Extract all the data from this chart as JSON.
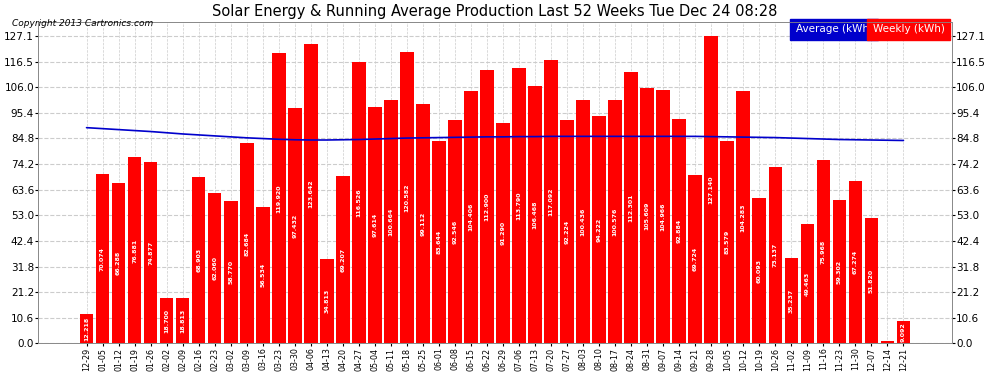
{
  "title": "Solar Energy & Running Average Production Last 52 Weeks Tue Dec 24 08:28",
  "copyright": "Copyright 2013 Cartronics.com",
  "bar_color": "#ff0000",
  "avg_line_color": "#0000cc",
  "background_color": "#ffffff",
  "plot_bg_color": "#ffffff",
  "ytick_values": [
    0.0,
    10.6,
    21.2,
    31.8,
    42.4,
    53.0,
    63.6,
    74.2,
    84.8,
    95.4,
    106.0,
    116.5,
    127.1
  ],
  "ylim_max": 133,
  "legend_avg_label": "Average (kWh)",
  "legend_weekly_label": "Weekly (kWh)",
  "legend_avg_bg": "#0000cc",
  "legend_weekly_bg": "#ff0000",
  "categories": [
    "12-29",
    "01-05",
    "01-12",
    "01-19",
    "01-26",
    "02-02",
    "02-09",
    "02-16",
    "02-23",
    "03-02",
    "03-09",
    "03-16",
    "03-23",
    "03-30",
    "04-06",
    "04-13",
    "04-20",
    "04-27",
    "05-04",
    "05-11",
    "05-18",
    "05-25",
    "06-01",
    "06-08",
    "06-15",
    "06-22",
    "06-29",
    "07-06",
    "07-13",
    "07-20",
    "07-27",
    "08-03",
    "08-10",
    "08-17",
    "08-24",
    "08-31",
    "09-07",
    "09-14",
    "09-21",
    "09-28",
    "10-05",
    "10-12",
    "10-19",
    "10-26",
    "11-02",
    "11-09",
    "11-16",
    "11-23",
    "11-30",
    "12-07",
    "12-14",
    "12-21"
  ],
  "weekly_values": [
    12.218,
    70.074,
    66.288,
    76.881,
    74.877,
    18.7,
    18.813,
    68.903,
    62.06,
    58.77,
    82.684,
    56.534,
    119.92,
    97.432,
    123.642,
    34.813,
    69.207,
    116.526,
    97.614,
    100.664,
    120.582,
    99.112,
    83.644,
    92.546,
    104.406,
    112.9,
    91.29,
    113.79,
    106.468,
    117.092,
    92.224,
    100.436,
    94.222,
    100.576,
    112.301,
    105.609,
    104.966,
    92.884,
    69.724,
    127.14,
    83.579,
    104.283,
    60.093,
    73.137,
    35.237,
    49.463,
    75.968,
    59.302,
    67.274,
    51.82,
    1.053,
    9.092
  ],
  "running_avg": [
    89.2,
    88.8,
    88.4,
    88.0,
    87.6,
    87.1,
    86.6,
    86.2,
    85.8,
    85.4,
    85.0,
    84.7,
    84.4,
    84.2,
    84.1,
    84.1,
    84.2,
    84.3,
    84.5,
    84.7,
    84.9,
    85.0,
    85.1,
    85.2,
    85.3,
    85.4,
    85.4,
    85.5,
    85.5,
    85.6,
    85.6,
    85.6,
    85.6,
    85.6,
    85.6,
    85.6,
    85.6,
    85.6,
    85.6,
    85.5,
    85.4,
    85.3,
    85.2,
    85.1,
    84.9,
    84.7,
    84.5,
    84.3,
    84.2,
    84.1,
    84.0,
    83.9
  ]
}
